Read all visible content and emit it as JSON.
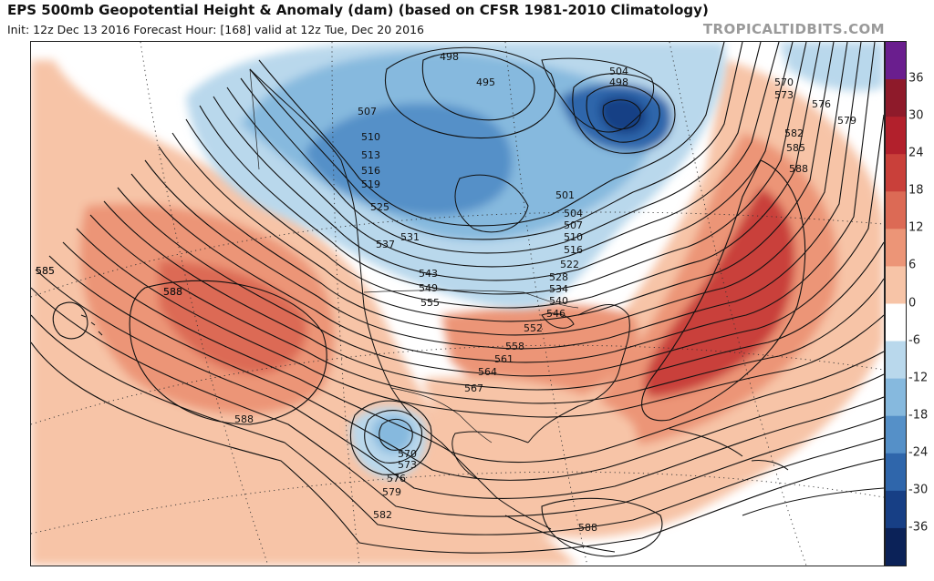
{
  "header": {
    "title": "EPS 500mb Geopotential Height & Anomaly (dam) (based on CFSR 1981-2010 Climatology)",
    "subtitle": "Init: 12z Dec 13 2016   Forecast Hour: [168]   valid at 12z Tue, Dec 20 2016",
    "brand": "TROPICALTIDBITS.COM"
  },
  "colorbar": {
    "labels": [
      "36",
      "30",
      "24",
      "18",
      "12",
      "6",
      "0",
      "-6",
      "-12",
      "-18",
      "-24",
      "-30",
      "-36"
    ],
    "colors": [
      "#6a1e8e",
      "#8e1a2a",
      "#b2202c",
      "#c9403a",
      "#dc6a55",
      "#ec9577",
      "#f7c4a7",
      "#ffffff",
      "#b9d8ec",
      "#86b9de",
      "#5590c8",
      "#2f66ab",
      "#173f85",
      "#0b2258"
    ]
  },
  "contour_labels": [
    "498",
    "495",
    "504",
    "498",
    "507",
    "510",
    "513",
    "516",
    "519",
    "525",
    "531",
    "537",
    "543",
    "549",
    "555",
    "501",
    "504",
    "507",
    "510",
    "516",
    "522",
    "528",
    "534",
    "540",
    "546",
    "552",
    "558",
    "561",
    "564",
    "567",
    "570",
    "573",
    "576",
    "579",
    "582",
    "585",
    "588",
    "570",
    "573",
    "576",
    "579",
    "582",
    "585",
    "588",
    "588",
    "588",
    "585",
    "588"
  ]
}
